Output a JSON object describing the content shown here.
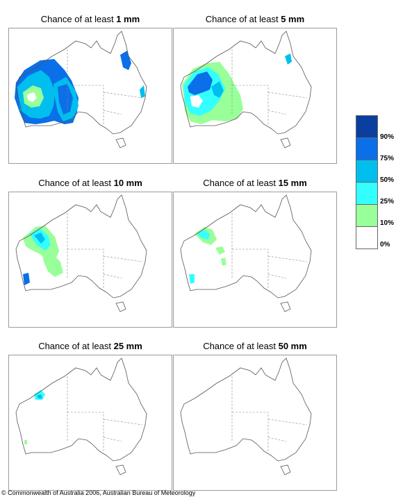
{
  "panels": [
    {
      "prefix": "Chance of at least",
      "amount": "1 mm"
    },
    {
      "prefix": "Chance of at least",
      "amount": "5 mm"
    },
    {
      "prefix": "Chance of at least",
      "amount": "10 mm"
    },
    {
      "prefix": "Chance of at least",
      "amount": "15 mm"
    },
    {
      "prefix": "Chance of at least",
      "amount": "25 mm"
    },
    {
      "prefix": "Chance of at least",
      "amount": "50 mm"
    }
  ],
  "legend": {
    "labels": [
      "90%",
      "75%",
      "50%",
      "25%",
      "10%",
      "0%"
    ],
    "colors": [
      "#0a3fa0",
      "#0a6fe8",
      "#00bfee",
      "#33ffff",
      "#99ff99",
      "#ffffff"
    ]
  },
  "copyright": "© Commonwealth of Australia 2006, Australian Bureau of Meteorology"
}
